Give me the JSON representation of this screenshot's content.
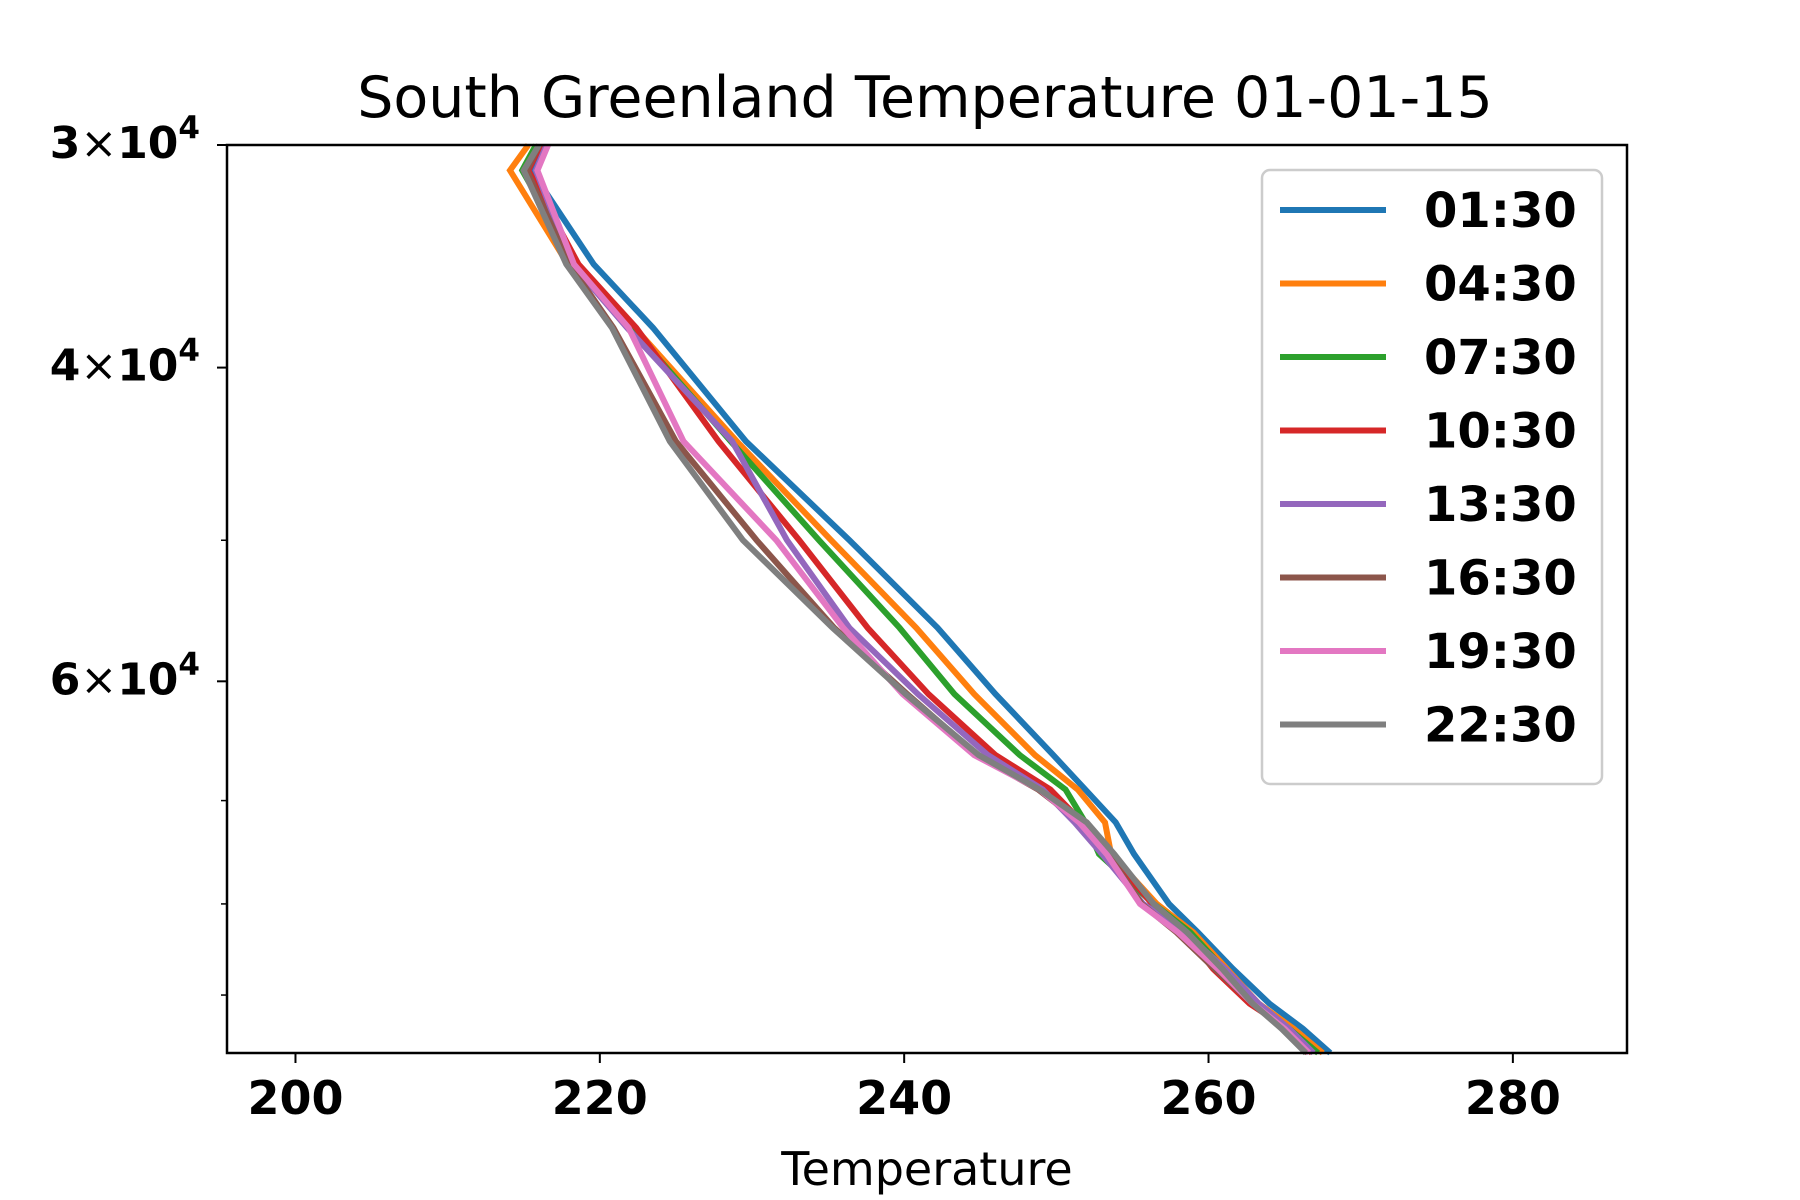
{
  "chart_data": {
    "type": "line",
    "title": "South Greenland Temperature 01-01-15",
    "xlabel": "Temperature",
    "ylabel": "",
    "xlim": [
      195.5,
      287.5
    ],
    "ylim": [
      30000,
      97000
    ],
    "yscale": "log",
    "y_inverted": false,
    "grid": false,
    "legend_position": "top-right",
    "x_ticks": [
      {
        "value": 200,
        "label": "200"
      },
      {
        "value": 220,
        "label": "220"
      },
      {
        "value": 240,
        "label": "240"
      },
      {
        "value": 260,
        "label": "260"
      },
      {
        "value": 280,
        "label": "280"
      }
    ],
    "y_ticks": [
      {
        "value": 30000,
        "mantissa": "3",
        "exponent": "4"
      },
      {
        "value": 40000,
        "mantissa": "4",
        "exponent": "4"
      },
      {
        "value": 60000,
        "mantissa": "6",
        "exponent": "4"
      }
    ],
    "y_minor_ticks": [
      50000,
      70000,
      80000,
      90000
    ],
    "times_sign": "×",
    "tick_base": "10",
    "series": [
      {
        "name": "01:30",
        "color": "#1f77b4",
        "x": [
          216.2,
          215.5,
          219.6,
          223.5,
          229.6,
          236.4,
          242.2,
          246.0,
          249.8,
          251.9,
          253.9,
          255.1,
          257.4,
          259.3,
          261.6,
          264.0,
          266.2,
          268.0
        ],
        "y": [
          30000,
          31000,
          35000,
          38000,
          44000,
          50000,
          56000,
          61000,
          66000,
          69000,
          72000,
          75000,
          80000,
          83000,
          87000,
          91000,
          94000,
          97000
        ]
      },
      {
        "name": "04:30",
        "color": "#ff7f0e",
        "x": [
          215.3,
          214.1,
          217.9,
          222.3,
          229.0,
          235.2,
          240.8,
          244.6,
          248.6,
          251.4,
          253.2,
          253.6,
          256.6,
          259.0,
          261.2,
          263.3,
          265.6,
          267.5
        ],
        "y": [
          30000,
          31000,
          35000,
          38000,
          44000,
          50000,
          56000,
          61000,
          66000,
          69000,
          72000,
          75000,
          80000,
          83000,
          87000,
          91000,
          94000,
          97000
        ]
      },
      {
        "name": "07:30",
        "color": "#2ca02c",
        "x": [
          215.8,
          214.9,
          218.4,
          222.1,
          228.6,
          234.4,
          239.7,
          243.3,
          247.6,
          250.6,
          251.9,
          252.8,
          256.4,
          258.8,
          261.0,
          263.1,
          265.3,
          267.2
        ],
        "y": [
          30000,
          31000,
          35000,
          38000,
          44000,
          50000,
          56000,
          61000,
          66000,
          69000,
          72000,
          75000,
          80000,
          83000,
          87000,
          91000,
          94000,
          97000
        ]
      },
      {
        "name": "10:30",
        "color": "#d62728",
        "x": [
          216.1,
          215.3,
          218.6,
          222.4,
          227.8,
          233.1,
          237.6,
          241.6,
          246.0,
          249.6,
          251.7,
          253.5,
          256.3,
          258.4,
          260.3,
          262.7,
          265.2,
          266.8
        ],
        "y": [
          30000,
          31000,
          35000,
          38000,
          44000,
          50000,
          56000,
          61000,
          66000,
          69000,
          72000,
          75000,
          80000,
          83000,
          87000,
          91000,
          94000,
          97000
        ]
      },
      {
        "name": "13:30",
        "color": "#9467bd",
        "x": [
          216.5,
          215.8,
          218.2,
          221.8,
          228.7,
          232.3,
          236.4,
          240.9,
          245.5,
          249.1,
          251.2,
          253.0,
          255.7,
          258.4,
          261.1,
          263.3,
          265.3,
          266.9
        ],
        "y": [
          30000,
          31000,
          35000,
          38000,
          44000,
          50000,
          56000,
          61000,
          66000,
          69000,
          72000,
          75000,
          80000,
          83000,
          87000,
          91000,
          94000,
          97000
        ]
      },
      {
        "name": "16:30",
        "color": "#8c564b",
        "x": [
          216.0,
          215.2,
          218.0,
          220.9,
          225.0,
          230.3,
          235.4,
          240.2,
          244.8,
          248.8,
          251.6,
          253.4,
          255.6,
          257.9,
          260.4,
          262.9,
          264.9,
          266.5
        ],
        "y": [
          30000,
          31000,
          35000,
          38000,
          44000,
          50000,
          56000,
          61000,
          66000,
          69000,
          72000,
          75000,
          80000,
          83000,
          87000,
          91000,
          94000,
          97000
        ]
      },
      {
        "name": "19:30",
        "color": "#e377c2",
        "x": [
          216.6,
          215.9,
          218.3,
          221.9,
          225.5,
          231.6,
          236.0,
          239.9,
          244.6,
          248.9,
          251.5,
          253.3,
          255.5,
          258.0,
          260.6,
          262.9,
          265.0,
          266.6
        ],
        "y": [
          30000,
          31000,
          35000,
          38000,
          44000,
          50000,
          56000,
          61000,
          66000,
          69000,
          72000,
          75000,
          80000,
          83000,
          87000,
          91000,
          94000,
          97000
        ]
      },
      {
        "name": "22:30",
        "color": "#7f7f7f",
        "x": [
          216.0,
          215.0,
          217.8,
          220.8,
          224.6,
          229.4,
          235.3,
          240.1,
          244.9,
          248.9,
          252.0,
          253.8,
          256.4,
          258.6,
          260.9,
          262.9,
          264.8,
          266.4
        ],
        "y": [
          30000,
          31000,
          35000,
          38000,
          44000,
          50000,
          56000,
          61000,
          66000,
          69000,
          72000,
          75000,
          80000,
          83000,
          87000,
          91000,
          94000,
          97000
        ]
      }
    ]
  }
}
